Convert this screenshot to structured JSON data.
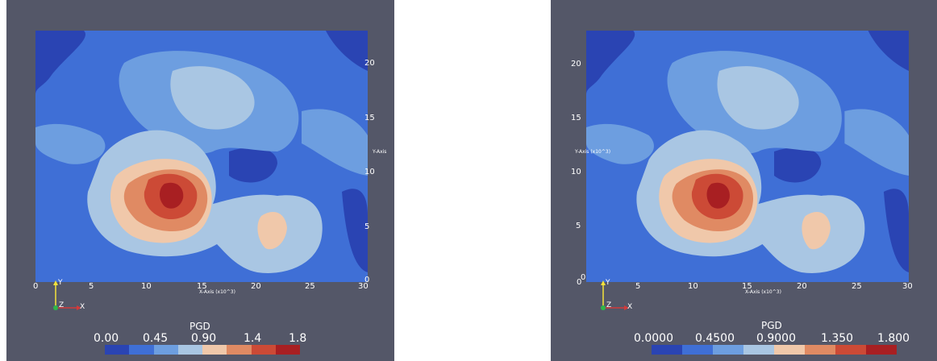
{
  "colors": {
    "background": "#545768",
    "page": "#ffffff",
    "colormap": [
      "#2a44b3",
      "#3f6fd6",
      "#6d9ee0",
      "#a9c6e3",
      "#f0c8aa",
      "#e08a63",
      "#cc4a36",
      "#a81f22"
    ]
  },
  "views": [
    {
      "legend": {
        "title": "PGD",
        "ticks": [
          "0.00",
          "0.45",
          "0.90",
          "1.4",
          "1.8"
        ]
      },
      "x_axis": {
        "title": "X-Axis (x10^3)",
        "ticks": [
          "0",
          "5",
          "10",
          "15",
          "20",
          "25",
          "30"
        ]
      },
      "y_axis": {
        "title": "Y-Axis",
        "ticks": [
          "0",
          "5",
          "10",
          "15",
          "20"
        ]
      },
      "orientation": {
        "y": "Y",
        "z": "Z",
        "x": "X"
      }
    },
    {
      "legend": {
        "title": "PGD",
        "ticks": [
          "0.0000",
          "0.4500",
          "0.9000",
          "1.350",
          "1.800"
        ]
      },
      "x_axis": {
        "title": "X-Axis (x10^3)",
        "ticks": [
          "0",
          "5",
          "10",
          "15",
          "20",
          "25",
          "30"
        ]
      },
      "y_axis": {
        "title": "Y-Axis (x10^3)",
        "ticks": [
          "0",
          "5",
          "10",
          "15",
          "20"
        ]
      },
      "orientation": {
        "y": "Y",
        "z": "Z",
        "x": "X"
      }
    }
  ]
}
